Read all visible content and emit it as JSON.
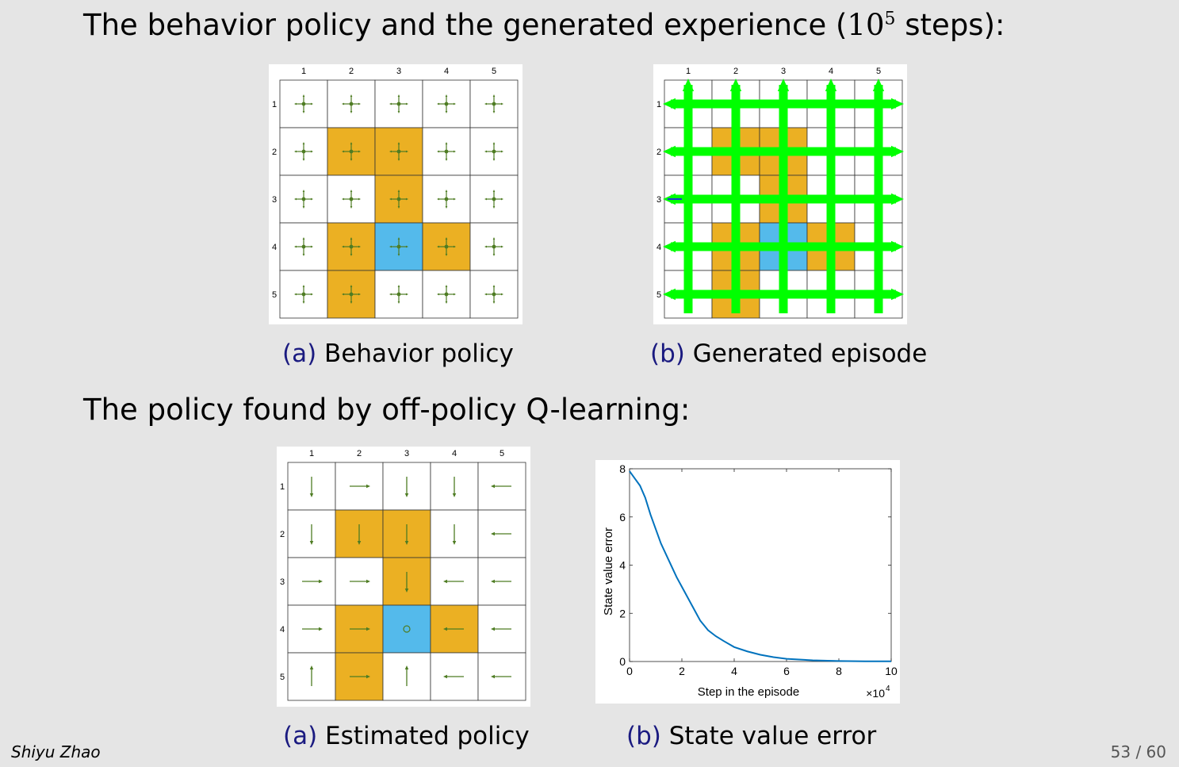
{
  "heading1": {
    "prefix": "The behavior policy and the generated experience (",
    "base": "10",
    "exp": "5",
    "suffix": " steps):"
  },
  "heading2": "The policy found by off-policy Q-learning:",
  "grid_labels": [
    "1",
    "2",
    "3",
    "4",
    "5"
  ],
  "colors": {
    "orange": "#ebb023",
    "blue": "#54baeb",
    "arrow": "#4e7c23",
    "episode": "#00ff00",
    "curve": "#0072bd"
  },
  "grid": {
    "forbidden": [
      [
        2,
        2
      ],
      [
        2,
        3
      ],
      [
        3,
        3
      ],
      [
        4,
        2
      ],
      [
        4,
        4
      ],
      [
        5,
        2
      ]
    ],
    "target": [
      4,
      3
    ]
  },
  "behavior_policy": {
    "caption_label": "(a)",
    "caption_text": "Behavior policy",
    "action_icon": "five-way-cross-icon"
  },
  "episode": {
    "caption_label": "(b)",
    "caption_text": "Generated episode"
  },
  "estimated_policy": {
    "caption_label": "(a)",
    "caption_text": "Estimated policy",
    "actions": [
      [
        "down",
        "right",
        "down",
        "down",
        "left"
      ],
      [
        "down",
        "down",
        "down",
        "down",
        "left"
      ],
      [
        "right",
        "right",
        "down",
        "left",
        "left"
      ],
      [
        "right",
        "right",
        "stay",
        "left",
        "left"
      ],
      [
        "up",
        "right",
        "up",
        "left",
        "left"
      ]
    ]
  },
  "error_chart": {
    "caption_label": "(b)",
    "caption_text": "State value error",
    "xlabel": "Step in the episode",
    "ylabel": "State value error",
    "x_multiplier": "×10",
    "x_multiplier_exp": "4",
    "xticks": [
      "0",
      "2",
      "4",
      "6",
      "8",
      "10"
    ],
    "yticks": [
      "0",
      "2",
      "4",
      "6",
      "8"
    ],
    "xlim": [
      0,
      10
    ],
    "ylim": [
      0,
      8
    ]
  },
  "chart_data": {
    "type": "line",
    "x": [
      0,
      0.2,
      0.4,
      0.6,
      0.8,
      1.0,
      1.2,
      1.5,
      1.8,
      2.1,
      2.4,
      2.7,
      3.0,
      3.3,
      3.6,
      4.0,
      4.5,
      5.0,
      5.5,
      6.0,
      7.0,
      8.0,
      9.0,
      10.0
    ],
    "series": [
      {
        "values": [
          7.9,
          7.6,
          7.3,
          6.8,
          6.1,
          5.5,
          4.9,
          4.2,
          3.5,
          2.9,
          2.3,
          1.7,
          1.3,
          1.05,
          0.85,
          0.6,
          0.42,
          0.28,
          0.18,
          0.11,
          0.05,
          0.02,
          0.01,
          0.01
        ]
      }
    ],
    "xlabel": "Step in the episode",
    "ylabel": "State value error",
    "xlim": [
      0,
      10
    ],
    "ylim": [
      0,
      8
    ],
    "x_scale_note": "×10^4",
    "grid": false
  },
  "footer": {
    "author": "Shiyu Zhao",
    "page": "53 / 60"
  }
}
